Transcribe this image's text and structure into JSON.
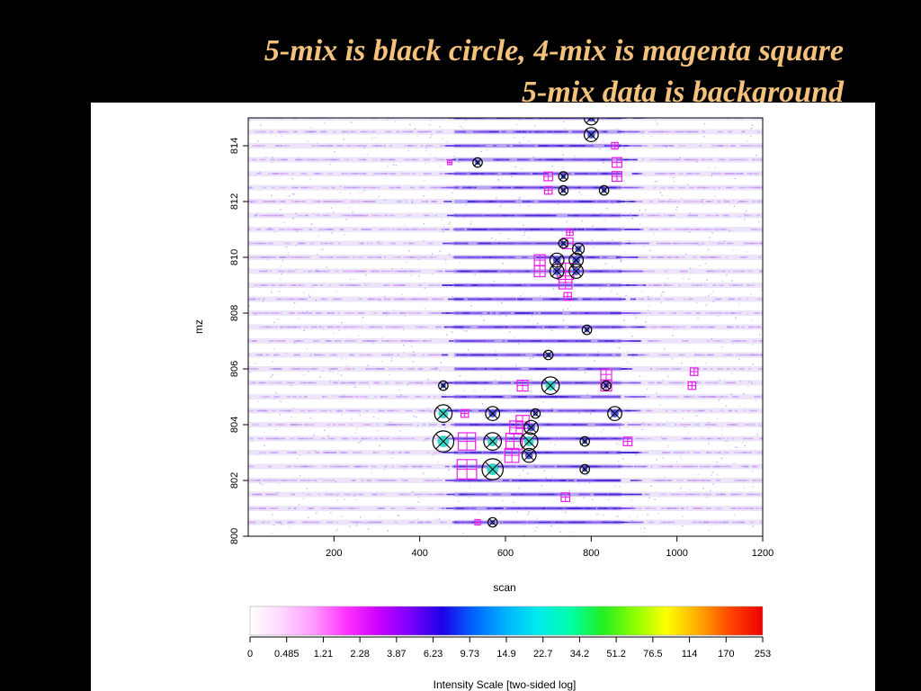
{
  "slide": {
    "title_line1": "5-mix is black circle, 4-mix is magenta square",
    "title_line2": "5-mix data is background"
  },
  "colors": {
    "background": "#000000",
    "title": "#f4c27a",
    "five_mix_marker": "#000000",
    "four_mix_marker": "#e81ee8"
  },
  "chart_data": {
    "type": "scatter",
    "xlabel": "scan",
    "ylabel": "mz",
    "xlim": [
      0,
      1200
    ],
    "ylim": [
      800,
      815
    ],
    "xticks": [
      200,
      400,
      600,
      800,
      1000,
      1200
    ],
    "yticks": [
      800,
      802,
      804,
      806,
      808,
      810,
      812,
      814
    ],
    "background_data": "5-mix intensity map (dense purple/blue streaks along mz rows)",
    "series": [
      {
        "name": "5-mix",
        "marker": "black circle with x",
        "points": [
          {
            "x": 800,
            "y": 815.0,
            "size": 1.2
          },
          {
            "x": 800,
            "y": 814.4,
            "size": 1.2
          },
          {
            "x": 535,
            "y": 813.4,
            "size": 0.8
          },
          {
            "x": 735,
            "y": 812.9,
            "size": 0.8
          },
          {
            "x": 735,
            "y": 812.4,
            "size": 0.8
          },
          {
            "x": 830,
            "y": 812.4,
            "size": 0.8
          },
          {
            "x": 735,
            "y": 810.5,
            "size": 0.8
          },
          {
            "x": 770,
            "y": 810.3,
            "size": 1.0
          },
          {
            "x": 720,
            "y": 809.9,
            "size": 1.2
          },
          {
            "x": 765,
            "y": 809.9,
            "size": 1.2
          },
          {
            "x": 720,
            "y": 809.5,
            "size": 1.2
          },
          {
            "x": 765,
            "y": 809.5,
            "size": 1.2
          },
          {
            "x": 790,
            "y": 807.4,
            "size": 0.8
          },
          {
            "x": 700,
            "y": 806.5,
            "size": 0.8
          },
          {
            "x": 455,
            "y": 805.4,
            "size": 0.8
          },
          {
            "x": 705,
            "y": 805.4,
            "size": 1.5
          },
          {
            "x": 835,
            "y": 805.4,
            "size": 0.8
          },
          {
            "x": 455,
            "y": 804.4,
            "size": 1.5
          },
          {
            "x": 570,
            "y": 804.4,
            "size": 1.2
          },
          {
            "x": 670,
            "y": 804.4,
            "size": 0.8
          },
          {
            "x": 855,
            "y": 804.4,
            "size": 1.2
          },
          {
            "x": 660,
            "y": 803.9,
            "size": 1.2
          },
          {
            "x": 455,
            "y": 803.4,
            "size": 1.8
          },
          {
            "x": 570,
            "y": 803.4,
            "size": 1.5
          },
          {
            "x": 655,
            "y": 803.4,
            "size": 1.5
          },
          {
            "x": 785,
            "y": 803.4,
            "size": 0.8
          },
          {
            "x": 655,
            "y": 802.9,
            "size": 1.2
          },
          {
            "x": 570,
            "y": 802.4,
            "size": 1.8
          },
          {
            "x": 785,
            "y": 802.4,
            "size": 0.8
          },
          {
            "x": 570,
            "y": 800.5,
            "size": 0.8
          }
        ]
      },
      {
        "name": "4-mix",
        "marker": "magenta square with plus",
        "points": [
          {
            "x": 470,
            "y": 813.4,
            "size": 0.4
          },
          {
            "x": 700,
            "y": 812.9,
            "size": 0.8
          },
          {
            "x": 700,
            "y": 812.4,
            "size": 0.7
          },
          {
            "x": 860,
            "y": 813.4,
            "size": 0.9
          },
          {
            "x": 860,
            "y": 812.9,
            "size": 0.9
          },
          {
            "x": 855,
            "y": 814.0,
            "size": 0.6
          },
          {
            "x": 750,
            "y": 810.9,
            "size": 0.6
          },
          {
            "x": 745,
            "y": 810.5,
            "size": 1.0
          },
          {
            "x": 680,
            "y": 809.9,
            "size": 1.0
          },
          {
            "x": 680,
            "y": 809.5,
            "size": 1.0
          },
          {
            "x": 740,
            "y": 809.5,
            "size": 1.5
          },
          {
            "x": 740,
            "y": 809.1,
            "size": 1.2
          },
          {
            "x": 745,
            "y": 808.6,
            "size": 0.7
          },
          {
            "x": 835,
            "y": 805.8,
            "size": 1.0
          },
          {
            "x": 835,
            "y": 805.4,
            "size": 1.0
          },
          {
            "x": 1040,
            "y": 805.9,
            "size": 0.7
          },
          {
            "x": 1035,
            "y": 805.4,
            "size": 0.7
          },
          {
            "x": 640,
            "y": 805.4,
            "size": 1.0
          },
          {
            "x": 505,
            "y": 804.4,
            "size": 0.7
          },
          {
            "x": 640,
            "y": 804.1,
            "size": 1.2
          },
          {
            "x": 625,
            "y": 803.9,
            "size": 1.2
          },
          {
            "x": 510,
            "y": 803.4,
            "size": 1.6
          },
          {
            "x": 620,
            "y": 803.4,
            "size": 1.5
          },
          {
            "x": 885,
            "y": 803.4,
            "size": 0.8
          },
          {
            "x": 615,
            "y": 802.9,
            "size": 1.3
          },
          {
            "x": 510,
            "y": 802.4,
            "size": 1.8
          },
          {
            "x": 740,
            "y": 801.4,
            "size": 0.8
          },
          {
            "x": 535,
            "y": 800.5,
            "size": 0.5
          }
        ]
      }
    ],
    "colorbar": {
      "label": "Intensity Scale [two-sided log]",
      "tick_labels": [
        "0",
        "0.485",
        "1.21",
        "2.28",
        "3.87",
        "6.23",
        "9.73",
        "14.9",
        "22.7",
        "34.2",
        "51.2",
        "76.5",
        "114",
        "170",
        "253"
      ],
      "colors": [
        "#ffffff",
        "#ffd6ff",
        "#ff99ff",
        "#ff33ff",
        "#cc00ff",
        "#7a00ff",
        "#1f00e6",
        "#0066ff",
        "#00b4ff",
        "#00ecea",
        "#00ffaa",
        "#22ee22",
        "#8cff00",
        "#ffff00",
        "#ffaa00",
        "#ff4400",
        "#ee0000"
      ]
    }
  }
}
